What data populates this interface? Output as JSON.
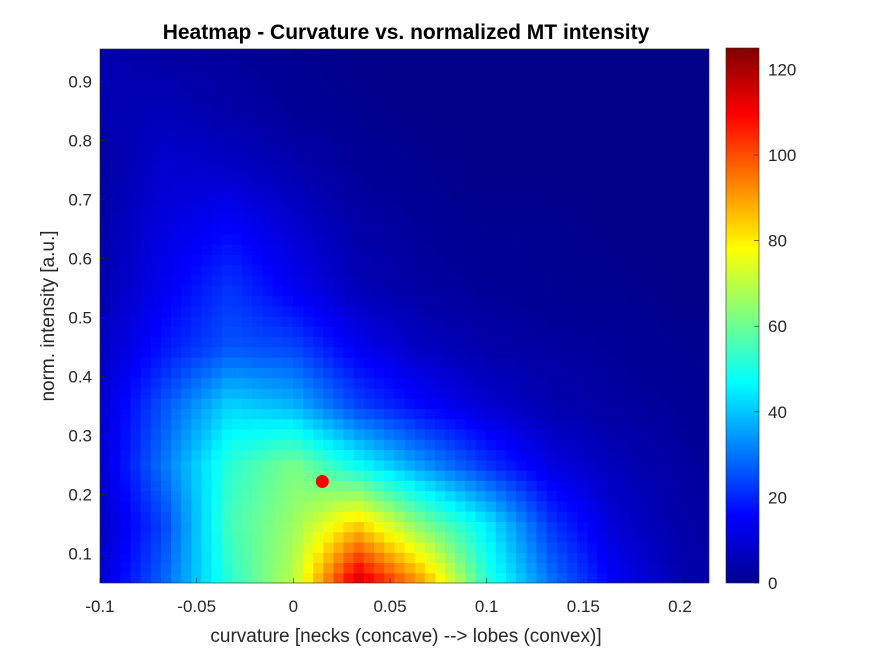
{
  "chart_data": {
    "type": "heatmap",
    "title": "Heatmap - Curvature vs. normalized MT intensity",
    "xlabel": "curvature [necks (concave) --> lobes (convex)]",
    "ylabel": "norm. intensity [a.u.]",
    "xlim": [
      -0.1,
      0.215
    ],
    "ylim": [
      0.05,
      0.955
    ],
    "xticks": [
      -0.1,
      -0.05,
      0,
      0.05,
      0.1,
      0.15,
      0.2
    ],
    "xtick_labels": [
      "-0.1",
      "-0.05",
      "0",
      "0.05",
      "0.1",
      "0.15",
      "0.2"
    ],
    "yticks": [
      0.1,
      0.2,
      0.3,
      0.4,
      0.5,
      0.6,
      0.7,
      0.8,
      0.9
    ],
    "ytick_labels": [
      "0.1",
      "0.2",
      "0.3",
      "0.4",
      "0.5",
      "0.6",
      "0.7",
      "0.8",
      "0.9"
    ],
    "colormap": "jet",
    "clim": [
      0,
      125
    ],
    "colorbar_ticks": [
      0,
      20,
      40,
      60,
      80,
      100,
      120
    ],
    "colorbar_tick_labels": [
      "0",
      "20",
      "40",
      "60",
      "80",
      "100",
      "120"
    ],
    "grid": false,
    "grid_x": [
      -0.1,
      -0.067,
      -0.033,
      0.0,
      0.033,
      0.067,
      0.1,
      0.133,
      0.167,
      0.2,
      0.215
    ],
    "grid_y": [
      0.05,
      0.15,
      0.25,
      0.35,
      0.45,
      0.55,
      0.65,
      0.75,
      0.85,
      0.955
    ],
    "z": [
      [
        10,
        28,
        52,
        70,
        116,
        90,
        52,
        30,
        14,
        6,
        5
      ],
      [
        8,
        24,
        55,
        66,
        84,
        62,
        45,
        22,
        10,
        5,
        4
      ],
      [
        10,
        30,
        52,
        62,
        48,
        34,
        22,
        12,
        7,
        4,
        3
      ],
      [
        10,
        26,
        42,
        38,
        24,
        16,
        10,
        6,
        4,
        3,
        2
      ],
      [
        8,
        18,
        26,
        24,
        14,
        8,
        5,
        4,
        3,
        2,
        2
      ],
      [
        6,
        14,
        22,
        14,
        7,
        4,
        3,
        2,
        2,
        1,
        1
      ],
      [
        5,
        12,
        16,
        10,
        5,
        3,
        2,
        2,
        1,
        1,
        1
      ],
      [
        4,
        10,
        9,
        6,
        3,
        2,
        1,
        1,
        1,
        1,
        1
      ],
      [
        6,
        7,
        5,
        3,
        2,
        1,
        1,
        1,
        1,
        1,
        1
      ],
      [
        6,
        4,
        3,
        2,
        1,
        1,
        1,
        1,
        1,
        1,
        1
      ]
    ],
    "marker": {
      "x": 0.015,
      "y": 0.222,
      "color": "#ff0000"
    }
  }
}
